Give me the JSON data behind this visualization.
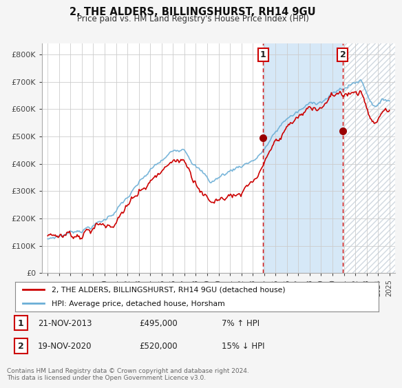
{
  "title": "2, THE ALDERS, BILLINGSHURST, RH14 9GU",
  "subtitle": "Price paid vs. HM Land Registry's House Price Index (HPI)",
  "background_color": "#f5f5f5",
  "plot_background": "#ffffff",
  "grid_color": "#cccccc",
  "ylabel_ticks": [
    "£0",
    "£100K",
    "£200K",
    "£300K",
    "£400K",
    "£500K",
    "£600K",
    "£700K",
    "£800K"
  ],
  "ytick_vals": [
    0,
    100000,
    200000,
    300000,
    400000,
    500000,
    600000,
    700000,
    800000
  ],
  "ylim": [
    0,
    840000
  ],
  "xlim_start": 1994.5,
  "xlim_end": 2025.5,
  "purchase1_date": 2013.9,
  "purchase1_price": 495000,
  "purchase1_label": "1",
  "purchase2_date": 2020.9,
  "purchase2_price": 520000,
  "purchase2_label": "2",
  "hpi_color": "#6aaed6",
  "price_color": "#cc0000",
  "purchase_marker_color": "#990000",
  "dashed_line_color": "#cc0000",
  "shade_color": "#d6e8f7",
  "hatch_color": "#d0d8e0",
  "legend_label_price": "2, THE ALDERS, BILLINGSHURST, RH14 9GU (detached house)",
  "legend_label_hpi": "HPI: Average price, detached house, Horsham",
  "table_row1": [
    "1",
    "21-NOV-2013",
    "£495,000",
    "7% ↑ HPI"
  ],
  "table_row2": [
    "2",
    "19-NOV-2020",
    "£520,000",
    "15% ↓ HPI"
  ],
  "footer": "Contains HM Land Registry data © Crown copyright and database right 2024.\nThis data is licensed under the Open Government Licence v3.0.",
  "xtick_years": [
    1995,
    1996,
    1997,
    1998,
    1999,
    2000,
    2001,
    2002,
    2003,
    2004,
    2005,
    2006,
    2007,
    2008,
    2009,
    2010,
    2011,
    2012,
    2013,
    2014,
    2015,
    2016,
    2017,
    2018,
    2019,
    2020,
    2021,
    2022,
    2023,
    2024,
    2025
  ]
}
